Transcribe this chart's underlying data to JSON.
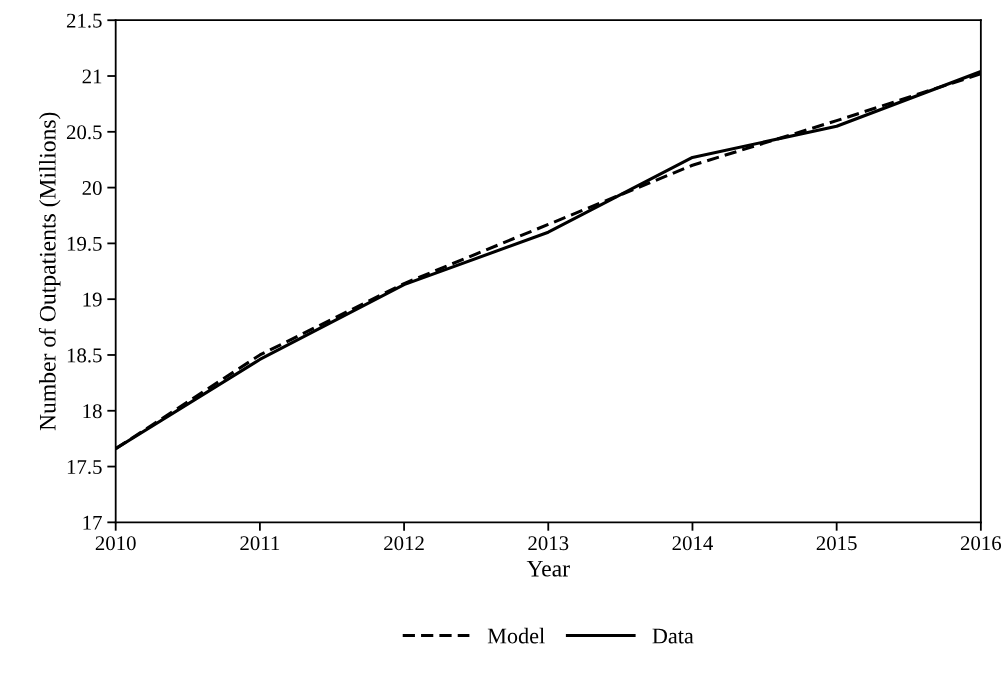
{
  "chart_data": {
    "type": "line",
    "xlabel": "Year",
    "ylabel": "Number of Outpatients (Millions)",
    "x": [
      2010,
      2011,
      2012,
      2013,
      2014,
      2015,
      2016
    ],
    "series": [
      {
        "name": "Model",
        "color": "#000000",
        "line_style": "dashed",
        "values": [
          17.66,
          18.5,
          19.14,
          19.67,
          20.2,
          20.6,
          21.02
        ]
      },
      {
        "name": "Data",
        "color": "#000000",
        "line_style": "solid",
        "values": [
          17.66,
          18.46,
          19.13,
          19.6,
          20.27,
          20.55,
          21.04
        ]
      }
    ],
    "xlim": [
      2010,
      2016
    ],
    "xticks": [
      2010,
      2011,
      2012,
      2013,
      2014,
      2015,
      2016
    ],
    "ylim": [
      17,
      21.5
    ],
    "yticks": [
      17,
      17.5,
      18,
      18.5,
      19,
      19.5,
      20,
      20.5,
      21,
      21.5
    ],
    "grid": false,
    "legend": "bottom",
    "marker": "none"
  }
}
